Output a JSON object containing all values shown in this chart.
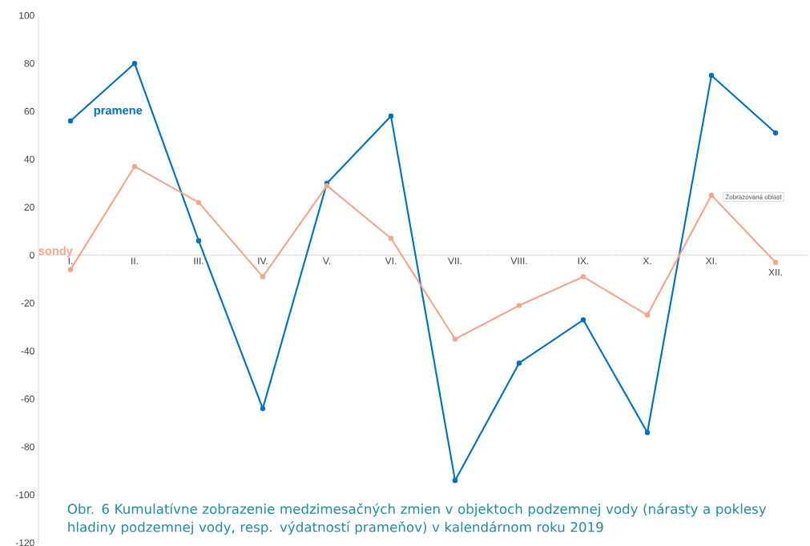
{
  "chart_data": {
    "type": "line",
    "categories": [
      "I.",
      "II.",
      "III.",
      "IV.",
      "V.",
      "VI.",
      "VII.",
      "VIII.",
      "IX.",
      "X.",
      "XI.",
      "XII."
    ],
    "series": [
      {
        "name": "pramene",
        "color": "#0070c0",
        "values": [
          56,
          80,
          6,
          -64,
          30,
          58,
          -94,
          -45,
          -27,
          -74,
          75,
          51
        ]
      },
      {
        "name": "sondy",
        "color": "#f4a58a",
        "values": [
          -6,
          37,
          22,
          -9,
          29,
          7,
          -35,
          -21,
          -9,
          -25,
          25,
          -3
        ]
      }
    ],
    "ylim": [
      -120,
      100
    ],
    "yticks": [
      -120,
      -100,
      -80,
      -60,
      -40,
      -20,
      0,
      20,
      40,
      60,
      80,
      100
    ],
    "grid": false,
    "marker": "circle",
    "line_style": "solid",
    "annotations": [
      "Zobrazovaná oblast",
      "Obr. 6  Kumulatívne zobrazenie medzimesačných zmien v objektoch podzemnej vody (nárasty a poklesy hladiny podzemnej vody, resp. výdatností prameňov) v kalendárnom roku 2019"
    ]
  }
}
